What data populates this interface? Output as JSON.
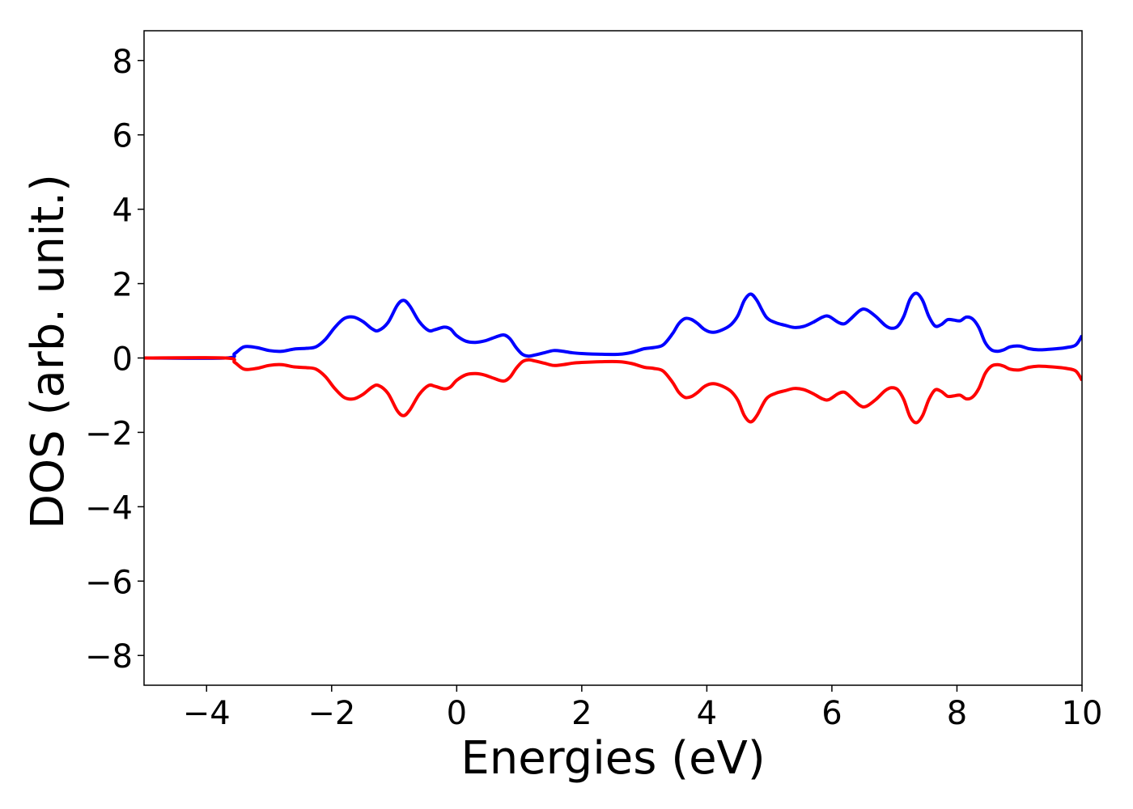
{
  "chart_data": {
    "type": "line",
    "title": "",
    "xlabel": "Energies (eV)",
    "ylabel": "DOS (arb. unit.)",
    "xlim": [
      -5,
      10
    ],
    "ylim": [
      -8.8,
      8.8
    ],
    "grid": false,
    "legend": "none",
    "x_ticks": [
      -4,
      -2,
      0,
      2,
      4,
      6,
      8,
      10
    ],
    "x_tick_labels": [
      "−4",
      "−2",
      "0",
      "2",
      "4",
      "6",
      "8",
      "10"
    ],
    "y_ticks": [
      8,
      6,
      4,
      2,
      0,
      -2,
      -4,
      -6,
      -8
    ],
    "y_tick_labels": [
      "8",
      "6",
      "4",
      "2",
      "0",
      "−2",
      "−4",
      "−6",
      "−8"
    ],
    "series": [
      {
        "color": "#0000ff",
        "x": [
          -5.0,
          -3.7,
          -3.55,
          -3.4,
          -3.2,
          -3.0,
          -2.8,
          -2.6,
          -2.4,
          -2.25,
          -2.1,
          -1.95,
          -1.8,
          -1.65,
          -1.5,
          -1.35,
          -1.25,
          -1.1,
          -0.95,
          -0.85,
          -0.75,
          -0.6,
          -0.45,
          -0.35,
          -0.2,
          -0.1,
          0.0,
          0.15,
          0.3,
          0.45,
          0.6,
          0.75,
          0.85,
          0.95,
          1.05,
          1.15,
          1.25,
          1.4,
          1.55,
          1.7,
          1.85,
          2.0,
          2.3,
          2.6,
          2.8,
          3.0,
          3.15,
          3.3,
          3.45,
          3.55,
          3.65,
          3.75,
          3.85,
          3.95,
          4.05,
          4.15,
          4.3,
          4.4,
          4.5,
          4.6,
          4.7,
          4.8,
          4.95,
          5.1,
          5.25,
          5.4,
          5.55,
          5.7,
          5.85,
          5.95,
          6.1,
          6.2,
          6.3,
          6.45,
          6.55,
          6.7,
          6.85,
          6.95,
          7.05,
          7.15,
          7.25,
          7.35,
          7.45,
          7.55,
          7.65,
          7.75,
          7.85,
          7.95,
          8.05,
          8.15,
          8.25,
          8.35,
          8.45,
          8.55,
          8.65,
          8.75,
          8.85,
          9.0,
          9.15,
          9.3,
          9.45,
          9.6,
          9.75,
          9.9,
          10.0
        ],
        "y": [
          0.0,
          0.0,
          0.12,
          0.3,
          0.28,
          0.2,
          0.18,
          0.24,
          0.26,
          0.3,
          0.5,
          0.82,
          1.06,
          1.1,
          0.98,
          0.78,
          0.74,
          0.95,
          1.42,
          1.55,
          1.4,
          0.98,
          0.74,
          0.76,
          0.83,
          0.78,
          0.6,
          0.45,
          0.42,
          0.46,
          0.55,
          0.62,
          0.52,
          0.28,
          0.1,
          0.05,
          0.08,
          0.14,
          0.2,
          0.18,
          0.14,
          0.12,
          0.1,
          0.1,
          0.15,
          0.25,
          0.28,
          0.35,
          0.65,
          0.92,
          1.06,
          1.04,
          0.93,
          0.78,
          0.7,
          0.7,
          0.8,
          0.92,
          1.15,
          1.55,
          1.72,
          1.55,
          1.1,
          0.95,
          0.88,
          0.82,
          0.85,
          0.96,
          1.1,
          1.12,
          0.96,
          0.92,
          1.05,
          1.28,
          1.3,
          1.12,
          0.88,
          0.8,
          0.85,
          1.12,
          1.58,
          1.74,
          1.55,
          1.12,
          0.86,
          0.9,
          1.03,
          1.02,
          1.0,
          1.1,
          1.05,
          0.82,
          0.42,
          0.22,
          0.18,
          0.22,
          0.3,
          0.32,
          0.25,
          0.22,
          0.23,
          0.25,
          0.28,
          0.35,
          0.6
        ]
      },
      {
        "color": "#ff0000",
        "x": [
          -5.0,
          -3.7,
          -3.55,
          -3.4,
          -3.2,
          -3.0,
          -2.8,
          -2.6,
          -2.4,
          -2.25,
          -2.1,
          -1.95,
          -1.8,
          -1.65,
          -1.5,
          -1.35,
          -1.25,
          -1.1,
          -0.95,
          -0.85,
          -0.75,
          -0.6,
          -0.45,
          -0.35,
          -0.2,
          -0.1,
          0.0,
          0.15,
          0.3,
          0.45,
          0.6,
          0.75,
          0.85,
          0.95,
          1.05,
          1.15,
          1.25,
          1.4,
          1.55,
          1.7,
          1.85,
          2.0,
          2.3,
          2.6,
          2.8,
          3.0,
          3.15,
          3.3,
          3.45,
          3.55,
          3.65,
          3.75,
          3.85,
          3.95,
          4.05,
          4.15,
          4.3,
          4.4,
          4.5,
          4.6,
          4.7,
          4.8,
          4.95,
          5.1,
          5.25,
          5.4,
          5.55,
          5.7,
          5.85,
          5.95,
          6.1,
          6.2,
          6.3,
          6.45,
          6.55,
          6.7,
          6.85,
          6.95,
          7.05,
          7.15,
          7.25,
          7.35,
          7.45,
          7.55,
          7.65,
          7.75,
          7.85,
          7.95,
          8.05,
          8.15,
          8.25,
          8.35,
          8.45,
          8.55,
          8.65,
          8.75,
          8.85,
          9.0,
          9.15,
          9.3,
          9.45,
          9.6,
          9.75,
          9.9,
          10.0
        ],
        "y": [
          0.0,
          0.0,
          -0.12,
          -0.3,
          -0.28,
          -0.2,
          -0.18,
          -0.24,
          -0.26,
          -0.3,
          -0.5,
          -0.82,
          -1.06,
          -1.1,
          -0.98,
          -0.78,
          -0.74,
          -0.95,
          -1.42,
          -1.55,
          -1.4,
          -0.98,
          -0.74,
          -0.76,
          -0.83,
          -0.78,
          -0.6,
          -0.45,
          -0.42,
          -0.46,
          -0.55,
          -0.62,
          -0.52,
          -0.28,
          -0.1,
          -0.05,
          -0.08,
          -0.14,
          -0.2,
          -0.18,
          -0.14,
          -0.12,
          -0.1,
          -0.1,
          -0.15,
          -0.25,
          -0.28,
          -0.35,
          -0.65,
          -0.92,
          -1.06,
          -1.04,
          -0.93,
          -0.78,
          -0.7,
          -0.7,
          -0.8,
          -0.92,
          -1.15,
          -1.55,
          -1.72,
          -1.55,
          -1.1,
          -0.95,
          -0.88,
          -0.82,
          -0.85,
          -0.96,
          -1.1,
          -1.12,
          -0.96,
          -0.92,
          -1.05,
          -1.28,
          -1.3,
          -1.12,
          -0.88,
          -0.8,
          -0.85,
          -1.12,
          -1.58,
          -1.74,
          -1.55,
          -1.12,
          -0.86,
          -0.9,
          -1.03,
          -1.02,
          -1.0,
          -1.1,
          -1.05,
          -0.82,
          -0.42,
          -0.22,
          -0.18,
          -0.22,
          -0.3,
          -0.32,
          -0.25,
          -0.22,
          -0.23,
          -0.25,
          -0.28,
          -0.35,
          -0.6
        ]
      }
    ]
  }
}
